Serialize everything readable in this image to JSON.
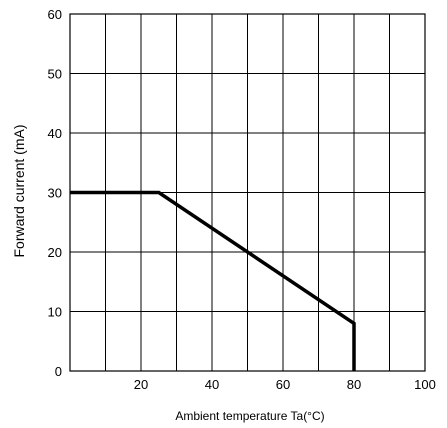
{
  "chart_data": {
    "type": "line",
    "xlabel": "Ambient temperature Ta(°C)",
    "ylabel": "Forward current (mA)",
    "xlim": [
      0,
      100
    ],
    "ylim": [
      0,
      60
    ],
    "x_ticks": [
      20,
      40,
      60,
      80,
      100
    ],
    "y_ticks": [
      0,
      10,
      20,
      30,
      40,
      50,
      60
    ],
    "grid": true,
    "x_grid_step": 10,
    "y_grid_step": 10,
    "series": [
      {
        "x": [
          0,
          25,
          80,
          80
        ],
        "y": [
          30,
          30,
          8,
          0
        ]
      }
    ]
  }
}
